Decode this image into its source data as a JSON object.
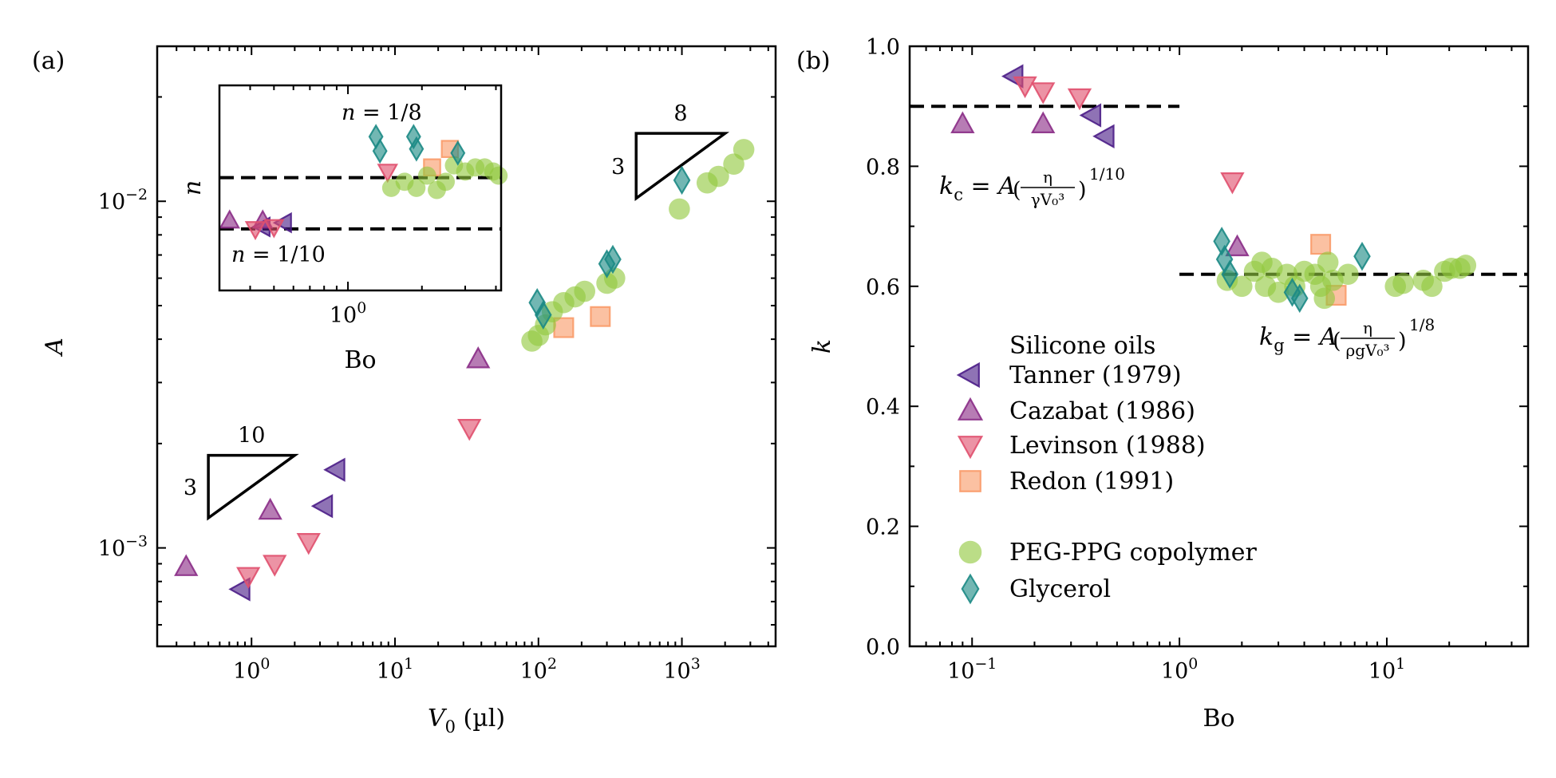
{
  "chart_data": [
    {
      "type": "scatter",
      "panel": "(a)",
      "xlabel_var": "V",
      "xlabel_sub": "0",
      "xlabel_unit": " (µl)",
      "ylabel": "A",
      "xscale": "log",
      "yscale": "log",
      "xlim": [
        0.22,
        4500
      ],
      "ylim": [
        0.00052,
        0.028
      ],
      "xticks": [
        {
          "v": 1,
          "base": "10",
          "exp": "0"
        },
        {
          "v": 10,
          "base": "10",
          "exp": "1"
        },
        {
          "v": 100,
          "base": "10",
          "exp": "2"
        },
        {
          "v": 1000,
          "base": "10",
          "exp": "3"
        }
      ],
      "yticks": [
        {
          "v": 0.001,
          "base": "10",
          "exp": "−3"
        },
        {
          "v": 0.01,
          "base": "10",
          "exp": "−2"
        }
      ],
      "slope_triangles": [
        {
          "x0": 0.5,
          "x1": 2.0,
          "y_low": 0.00122,
          "y_high": 0.00185,
          "top_label": "10",
          "side_label": "3"
        },
        {
          "x0": 480,
          "x1": 2000,
          "y_low": 0.0102,
          "y_high": 0.0157,
          "top_label": "8",
          "side_label": "3"
        }
      ],
      "series": [
        {
          "name": "Tanner (1979)",
          "marker": "triangle-left",
          "color": "#4b1d87",
          "points": [
            [
              0.85,
              0.00076
            ],
            [
              3.2,
              0.00132
            ],
            [
              3.9,
              0.00168
            ]
          ]
        },
        {
          "name": "Cazabat (1986)",
          "marker": "triangle-up",
          "color": "#8a2c86",
          "points": [
            [
              0.35,
              0.00088
            ],
            [
              1.35,
              0.00128
            ],
            [
              38,
              0.0035
            ]
          ]
        },
        {
          "name": "Levinson (1988)",
          "marker": "triangle-down",
          "color": "#e0506e",
          "points": [
            [
              0.95,
              0.00083
            ],
            [
              1.45,
              0.0009
            ],
            [
              2.5,
              0.00104
            ],
            [
              33,
              0.00222
            ]
          ]
        },
        {
          "name": "Redon (1991)",
          "marker": "square",
          "color": "#f99b69",
          "points": [
            [
              150,
              0.00432
            ],
            [
              270,
              0.00465
            ]
          ]
        },
        {
          "name": "PEG-PPG copolymer",
          "marker": "circle",
          "color": "#92c83e",
          "points": [
            [
              90,
              0.00395
            ],
            [
              100,
              0.0041
            ],
            [
              112,
              0.0044
            ],
            [
              125,
              0.0048
            ],
            [
              150,
              0.0051
            ],
            [
              180,
              0.0053
            ],
            [
              210,
              0.0055
            ],
            [
              300,
              0.0058
            ],
            [
              340,
              0.006
            ],
            [
              960,
              0.0095
            ],
            [
              1500,
              0.0113
            ],
            [
              1800,
              0.0118
            ],
            [
              2300,
              0.0128
            ],
            [
              2700,
              0.0141
            ]
          ]
        },
        {
          "name": "Glycerol",
          "marker": "diamond",
          "color": "#1c8a85",
          "points": [
            [
              98,
              0.0051
            ],
            [
              108,
              0.0047
            ],
            [
              300,
              0.0066
            ],
            [
              330,
              0.0068
            ],
            [
              1000,
              0.0115
            ]
          ]
        }
      ],
      "inset": {
        "xlabel": "Bo",
        "ylabel": "n",
        "xscale": "log",
        "xlim": [
          0.3,
          4.2
        ],
        "ylim": [
          0.07,
          0.17
        ],
        "xticks": [
          {
            "v": 1,
            "base": "10",
            "exp": "0"
          }
        ],
        "hlines": [
          {
            "y": 0.125,
            "label": "n = 1/8"
          },
          {
            "y": 0.1,
            "label": "n = 1/10"
          }
        ],
        "series": [
          {
            "name": "Tanner (1979)",
            "marker": "triangle-left",
            "color": "#4b1d87",
            "points": [
              [
                0.45,
                0.101
              ],
              [
                0.55,
                0.103
              ]
            ]
          },
          {
            "name": "Cazabat (1986)",
            "marker": "triangle-up",
            "color": "#8a2c86",
            "points": [
              [
                0.33,
                0.104
              ],
              [
                0.45,
                0.104
              ]
            ]
          },
          {
            "name": "Levinson (1988)",
            "marker": "triangle-down",
            "color": "#e0506e",
            "points": [
              [
                0.42,
                0.1
              ],
              [
                0.5,
                0.101
              ],
              [
                1.45,
                0.128
              ]
            ]
          },
          {
            "name": "Redon (1991)",
            "marker": "square",
            "color": "#f99b69",
            "points": [
              [
                2.2,
                0.13
              ],
              [
                2.6,
                0.139
              ]
            ]
          },
          {
            "name": "PEG-PPG copolymer",
            "marker": "circle",
            "color": "#92c83e",
            "points": [
              [
                1.5,
                0.12
              ],
              [
                1.7,
                0.123
              ],
              [
                1.9,
                0.12
              ],
              [
                2.1,
                0.126
              ],
              [
                2.3,
                0.119
              ],
              [
                2.5,
                0.123
              ],
              [
                2.7,
                0.131
              ],
              [
                3.0,
                0.128
              ],
              [
                3.3,
                0.13
              ],
              [
                3.6,
                0.13
              ],
              [
                3.9,
                0.128
              ],
              [
                4.1,
                0.126
              ]
            ]
          },
          {
            "name": "Glycerol",
            "marker": "diamond",
            "color": "#1c8a85",
            "points": [
              [
                1.3,
                0.145
              ],
              [
                1.35,
                0.138
              ],
              [
                1.85,
                0.145
              ],
              [
                1.9,
                0.139
              ],
              [
                2.8,
                0.137
              ]
            ]
          }
        ]
      }
    },
    {
      "type": "scatter",
      "panel": "(b)",
      "xlabel": "Bo",
      "ylabel": "k",
      "xscale": "log",
      "xlim": [
        0.05,
        48
      ],
      "ylim": [
        0.0,
        1.0
      ],
      "xticks": [
        {
          "v": 0.1,
          "base": "10",
          "exp": "−1"
        },
        {
          "v": 1,
          "base": "10",
          "exp": "0"
        },
        {
          "v": 10,
          "base": "10",
          "exp": "1"
        }
      ],
      "yticks": [
        {
          "v": 0.0,
          "label": "0.0"
        },
        {
          "v": 0.2,
          "label": "0.2"
        },
        {
          "v": 0.4,
          "label": "0.4"
        },
        {
          "v": 0.6,
          "label": "0.6"
        },
        {
          "v": 0.8,
          "label": "0.8"
        },
        {
          "v": 1.0,
          "label": "1.0"
        }
      ],
      "hlines": [
        {
          "y": 0.9,
          "x_range": [
            0.05,
            1.0
          ]
        },
        {
          "y": 0.62,
          "x_range": [
            1.0,
            48
          ]
        }
      ],
      "annotations": [
        {
          "name": "kc-formula",
          "k": "k",
          "sub": "c",
          "eq": " = A",
          "num": "η",
          "den": "γV₀³",
          "exp": "1/10"
        },
        {
          "name": "kg-formula",
          "k": "k",
          "sub": "g",
          "eq": " = A",
          "num": "η",
          "den": "ρgV₀³",
          "exp": "1/8"
        }
      ],
      "legend": {
        "title": "Silicone oils",
        "entries": [
          "Tanner (1979)",
          "Cazabat (1986)",
          "Levinson (1988)",
          "Redon (1991)",
          "PEG-PPG copolymer",
          "Glycerol"
        ]
      },
      "series": [
        {
          "name": "Tanner (1979)",
          "marker": "triangle-left",
          "color": "#4b1d87",
          "points": [
            [
              0.16,
              0.95
            ],
            [
              0.38,
              0.885
            ],
            [
              0.44,
              0.85
            ]
          ]
        },
        {
          "name": "Cazabat (1986)",
          "marker": "triangle-up",
          "color": "#8a2c86",
          "points": [
            [
              0.09,
              0.87
            ],
            [
              0.22,
              0.87
            ],
            [
              1.9,
              0.665
            ]
          ]
        },
        {
          "name": "Levinson (1988)",
          "marker": "triangle-down",
          "color": "#e0506e",
          "points": [
            [
              0.18,
              0.935
            ],
            [
              0.22,
              0.925
            ],
            [
              0.33,
              0.915
            ],
            [
              1.8,
              0.775
            ]
          ]
        },
        {
          "name": "Redon (1991)",
          "marker": "square",
          "color": "#f99b69",
          "points": [
            [
              4.8,
              0.67
            ],
            [
              5.7,
              0.585
            ]
          ]
        },
        {
          "name": "PEG-PPG copolymer",
          "marker": "circle",
          "color": "#92c83e",
          "points": [
            [
              1.7,
              0.61
            ],
            [
              2.0,
              0.6
            ],
            [
              2.3,
              0.625
            ],
            [
              2.5,
              0.64
            ],
            [
              2.6,
              0.6
            ],
            [
              2.8,
              0.63
            ],
            [
              3.0,
              0.59
            ],
            [
              3.3,
              0.62
            ],
            [
              3.6,
              0.6
            ],
            [
              4.0,
              0.625
            ],
            [
              4.5,
              0.62
            ],
            [
              4.8,
              0.6
            ],
            [
              5.0,
              0.58
            ],
            [
              5.2,
              0.64
            ],
            [
              5.5,
              0.61
            ],
            [
              6.5,
              0.62
            ],
            [
              11,
              0.6
            ],
            [
              12,
              0.605
            ],
            [
              15,
              0.61
            ],
            [
              16.5,
              0.6
            ],
            [
              19,
              0.625
            ],
            [
              20.5,
              0.63
            ],
            [
              22.5,
              0.63
            ],
            [
              24,
              0.635
            ]
          ]
        },
        {
          "name": "Glycerol",
          "marker": "diamond",
          "color": "#1c8a85",
          "points": [
            [
              1.6,
              0.675
            ],
            [
              1.65,
              0.645
            ],
            [
              1.75,
              0.62
            ],
            [
              3.5,
              0.59
            ],
            [
              3.8,
              0.58
            ],
            [
              7.6,
              0.65
            ]
          ]
        }
      ]
    }
  ]
}
